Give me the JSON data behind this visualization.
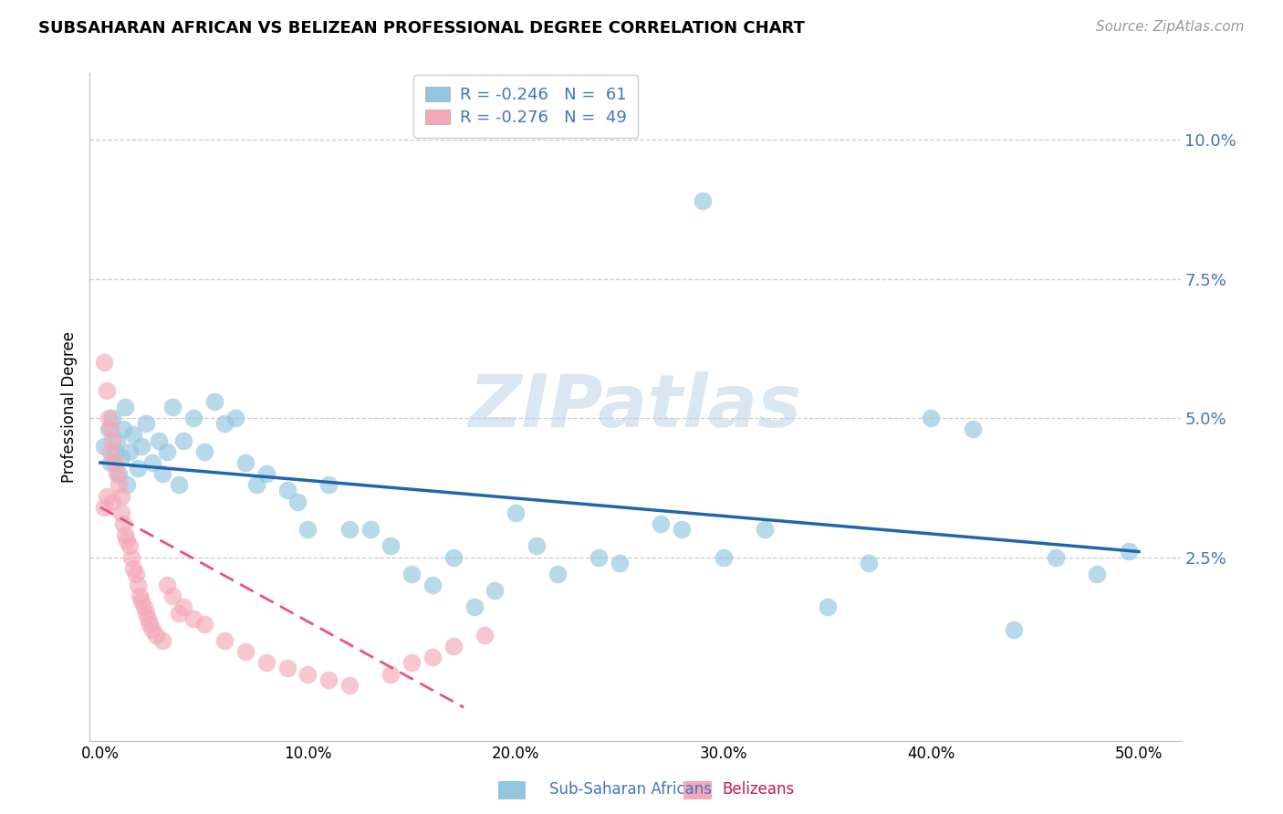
{
  "title": "SUBSAHARAN AFRICAN VS BELIZEAN PROFESSIONAL DEGREE CORRELATION CHART",
  "source": "Source: ZipAtlas.com",
  "ylabel": "Professional Degree",
  "ytick_labels": [
    "10.0%",
    "7.5%",
    "5.0%",
    "2.5%"
  ],
  "ytick_values": [
    0.1,
    0.075,
    0.05,
    0.025
  ],
  "xtick_labels": [
    "0.0%",
    "10.0%",
    "20.0%",
    "30.0%",
    "40.0%",
    "50.0%"
  ],
  "xtick_values": [
    0.0,
    0.1,
    0.2,
    0.3,
    0.4,
    0.5
  ],
  "xlim": [
    -0.005,
    0.52
  ],
  "ylim": [
    -0.008,
    0.112
  ],
  "watermark": "ZIPatlas",
  "legend_r1": "R = -0.246",
  "legend_n1": "N =  61",
  "legend_r2": "R = -0.276",
  "legend_n2": "N =  49",
  "blue_color": "#92c5de",
  "pink_color": "#f4a9b8",
  "blue_line_color": "#2166ac",
  "pink_line_color": "#e8547a",
  "blue_scatter_x": [
    0.002,
    0.004,
    0.005,
    0.006,
    0.007,
    0.008,
    0.009,
    0.01,
    0.011,
    0.012,
    0.013,
    0.014,
    0.016,
    0.018,
    0.02,
    0.022,
    0.025,
    0.028,
    0.03,
    0.032,
    0.035,
    0.038,
    0.04,
    0.045,
    0.05,
    0.055,
    0.06,
    0.065,
    0.07,
    0.075,
    0.08,
    0.09,
    0.095,
    0.1,
    0.11,
    0.12,
    0.13,
    0.14,
    0.15,
    0.16,
    0.17,
    0.18,
    0.19,
    0.2,
    0.21,
    0.22,
    0.24,
    0.25,
    0.27,
    0.28,
    0.3,
    0.32,
    0.35,
    0.37,
    0.4,
    0.42,
    0.44,
    0.46,
    0.48,
    0.495,
    0.29
  ],
  "blue_scatter_y": [
    0.045,
    0.048,
    0.042,
    0.05,
    0.044,
    0.046,
    0.04,
    0.043,
    0.048,
    0.052,
    0.038,
    0.044,
    0.047,
    0.041,
    0.045,
    0.049,
    0.042,
    0.046,
    0.04,
    0.044,
    0.052,
    0.038,
    0.046,
    0.05,
    0.044,
    0.053,
    0.049,
    0.05,
    0.042,
    0.038,
    0.04,
    0.037,
    0.035,
    0.03,
    0.038,
    0.03,
    0.03,
    0.027,
    0.022,
    0.02,
    0.025,
    0.016,
    0.019,
    0.033,
    0.027,
    0.022,
    0.025,
    0.024,
    0.031,
    0.03,
    0.025,
    0.03,
    0.016,
    0.024,
    0.05,
    0.048,
    0.012,
    0.025,
    0.022,
    0.026,
    0.089
  ],
  "pink_scatter_x": [
    0.002,
    0.003,
    0.004,
    0.005,
    0.005,
    0.006,
    0.007,
    0.008,
    0.009,
    0.01,
    0.01,
    0.011,
    0.012,
    0.013,
    0.014,
    0.015,
    0.016,
    0.017,
    0.018,
    0.019,
    0.02,
    0.021,
    0.022,
    0.023,
    0.024,
    0.025,
    0.027,
    0.03,
    0.032,
    0.035,
    0.038,
    0.04,
    0.045,
    0.05,
    0.06,
    0.07,
    0.08,
    0.09,
    0.1,
    0.11,
    0.12,
    0.14,
    0.15,
    0.16,
    0.17,
    0.185,
    0.002,
    0.003,
    0.006
  ],
  "pink_scatter_y": [
    0.06,
    0.055,
    0.05,
    0.048,
    0.044,
    0.046,
    0.042,
    0.04,
    0.038,
    0.036,
    0.033,
    0.031,
    0.029,
    0.028,
    0.027,
    0.025,
    0.023,
    0.022,
    0.02,
    0.018,
    0.017,
    0.016,
    0.015,
    0.014,
    0.013,
    0.012,
    0.011,
    0.01,
    0.02,
    0.018,
    0.015,
    0.016,
    0.014,
    0.013,
    0.01,
    0.008,
    0.006,
    0.005,
    0.004,
    0.003,
    0.002,
    0.004,
    0.006,
    0.007,
    0.009,
    0.011,
    0.034,
    0.036,
    0.035
  ],
  "blue_line_x": [
    0.0,
    0.5
  ],
  "blue_line_y": [
    0.042,
    0.026
  ],
  "pink_line_x": [
    0.0,
    0.175
  ],
  "pink_line_y": [
    0.034,
    -0.002
  ],
  "bottom_legend_labels": [
    "Sub-Saharan Africans",
    "Belizeans"
  ],
  "bottom_legend_colors": [
    "#92c5de",
    "#f4a9b8"
  ]
}
